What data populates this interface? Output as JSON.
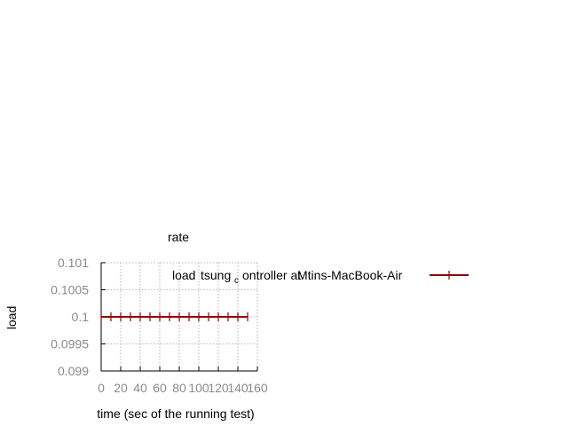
{
  "chart_data": {
    "type": "line",
    "title": "rate",
    "xlabel": "time (sec of the running test)",
    "ylabel": "load",
    "xlim": [
      0,
      160
    ],
    "ylim": [
      0.099,
      0.101
    ],
    "xticks": [
      0,
      20,
      40,
      60,
      80,
      100,
      120,
      140,
      160
    ],
    "xtick_labels": [
      "0",
      "20",
      "40",
      "60",
      "80",
      "100",
      "120",
      "140",
      "160"
    ],
    "yticks": [
      0.099,
      0.0995,
      0.1,
      0.1005,
      0.101
    ],
    "ytick_labels": [
      "0.099",
      "0.0995",
      "0.1",
      "0.1005",
      "0.101"
    ],
    "grid": true,
    "legend_position": "top-right",
    "series": [
      {
        "legend_parts": {
          "a": "load",
          "b": "tsung",
          "c": "c",
          "d": "ontroller at",
          "e": "Mtins-MacBook-Air"
        },
        "color": "#8b0000",
        "x": [
          0,
          10,
          20,
          30,
          40,
          50,
          60,
          70,
          80,
          90,
          100,
          110,
          120,
          130,
          140,
          150
        ],
        "y": [
          0.1,
          0.1,
          0.1,
          0.1,
          0.1,
          0.1,
          0.1,
          0.1,
          0.1,
          0.1,
          0.1,
          0.1,
          0.1,
          0.1,
          0.1,
          0.1
        ]
      }
    ]
  }
}
